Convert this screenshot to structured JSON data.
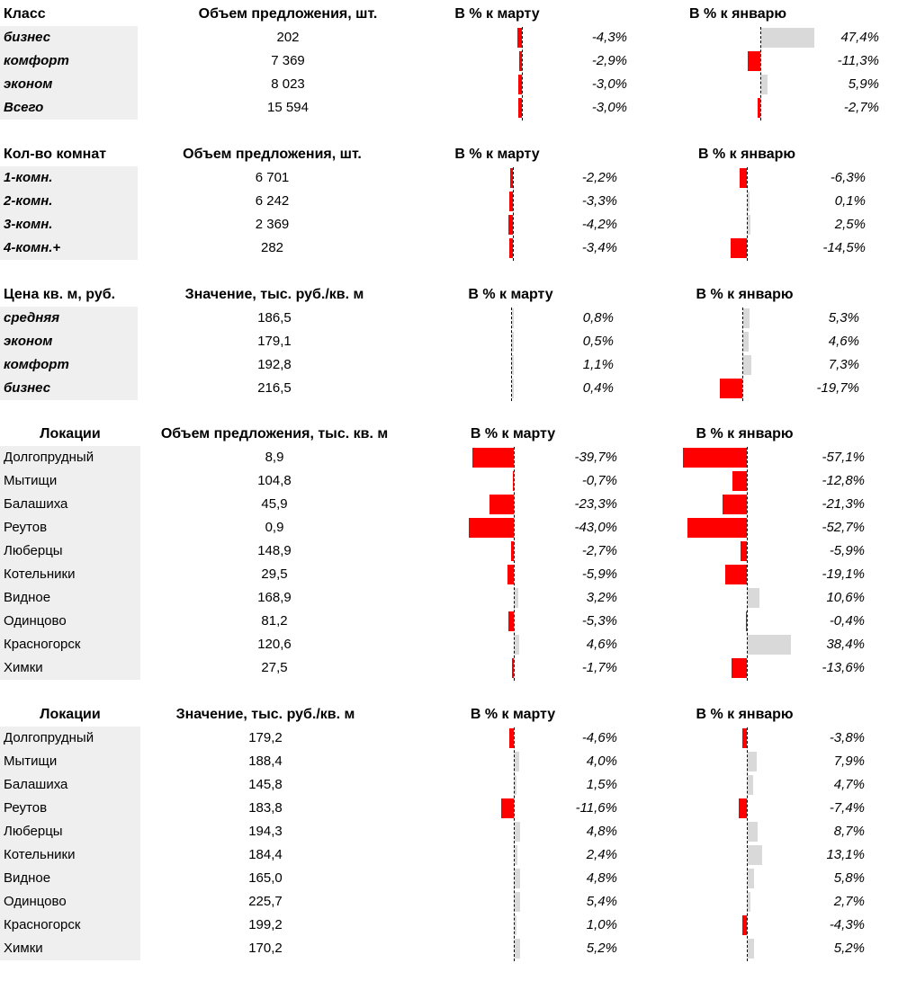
{
  "colors": {
    "negative_bar": "#ff0000",
    "positive_bar": "#d9d9d9",
    "label_bg": "#efefef"
  },
  "chart_data": [
    {
      "type": "table",
      "title": "Класс",
      "headers": {
        "label": "Класс",
        "value": "Объем предложения, шт.",
        "mar": "В % к марту",
        "jan": "В % к январю"
      },
      "scale": {
        "mar": 1.0,
        "jan": 1.0
      },
      "rows": [
        {
          "label": "бизнес",
          "value": "202",
          "mar": -4.3,
          "mar_text": "-4,3%",
          "jan": 47.4,
          "jan_text": "47,4%"
        },
        {
          "label": "комфорт",
          "value": "7 369",
          "mar": -2.9,
          "mar_text": "-2,9%",
          "jan": -11.3,
          "jan_text": "-11,3%"
        },
        {
          "label": "эконом",
          "value": "8 023",
          "mar": -3.0,
          "mar_text": "-3,0%",
          "jan": 5.9,
          "jan_text": "5,9%"
        },
        {
          "label": "Всего",
          "value": "15 594",
          "mar": -3.0,
          "mar_text": "-3,0%",
          "jan": -2.7,
          "jan_text": "-2,7%"
        }
      ]
    },
    {
      "type": "table",
      "title": "Кол-во комнат",
      "headers": {
        "label": "Кол-во комнат",
        "value": "Объем предложения, шт.",
        "mar": "В % к марту",
        "jan": "В % к январю"
      },
      "scale": {
        "mar": 1.0,
        "jan": 1.0
      },
      "rows": [
        {
          "label": "1-комн.",
          "value": "6 701",
          "mar": -2.2,
          "mar_text": "-2,2%",
          "jan": -6.3,
          "jan_text": "-6,3%"
        },
        {
          "label": "2-комн.",
          "value": "6 242",
          "mar": -3.3,
          "mar_text": "-3,3%",
          "jan": 0.1,
          "jan_text": "0,1%"
        },
        {
          "label": "3-комн.",
          "value": "2 369",
          "mar": -4.2,
          "mar_text": "-4,2%",
          "jan": 2.5,
          "jan_text": "2,5%"
        },
        {
          "label": "4-комн.+",
          "value": "282",
          "mar": -3.4,
          "mar_text": "-3,4%",
          "jan": -14.5,
          "jan_text": "-14,5%"
        }
      ]
    },
    {
      "type": "table",
      "title": "Цена кв. м, руб.",
      "headers": {
        "label": "Цена кв. м, руб.",
        "value": "Значение, тыс. руб./кв. м",
        "mar": "В % к марту",
        "jan": "В % к январю"
      },
      "scale": {
        "mar": 1.0,
        "jan": 1.0
      },
      "rows": [
        {
          "label": "средняя",
          "value": "186,5",
          "mar": 0.8,
          "mar_text": "0,8%",
          "jan": 5.3,
          "jan_text": "5,3%"
        },
        {
          "label": "эконом",
          "value": "179,1",
          "mar": 0.5,
          "mar_text": "0,5%",
          "jan": 4.6,
          "jan_text": "4,6%"
        },
        {
          "label": "комфорт",
          "value": "192,8",
          "mar": 1.1,
          "mar_text": "1,1%",
          "jan": 7.3,
          "jan_text": "7,3%"
        },
        {
          "label": "бизнес",
          "value": "216,5",
          "mar": 0.4,
          "mar_text": "0,4%",
          "jan": -19.7,
          "jan_text": "-19,7%"
        }
      ]
    },
    {
      "type": "table",
      "title": "Локации",
      "headers": {
        "label": "Локации",
        "value": "Объем предложения, тыс. кв. м",
        "mar": "В % к марту",
        "jan": "В % к январю"
      },
      "scale": {
        "mar": 1.0,
        "jan": 1.0
      },
      "rows": [
        {
          "label": "Долгопрудный",
          "value": "8,9",
          "mar": -39.7,
          "mar_text": "-39,7%",
          "jan": -57.1,
          "jan_text": "-57,1%"
        },
        {
          "label": "Мытищи",
          "value": "104,8",
          "mar": -0.7,
          "mar_text": "-0,7%",
          "jan": -12.8,
          "jan_text": "-12,8%"
        },
        {
          "label": "Балашиха",
          "value": "45,9",
          "mar": -23.3,
          "mar_text": "-23,3%",
          "jan": -21.3,
          "jan_text": "-21,3%"
        },
        {
          "label": "Реутов",
          "value": "0,9",
          "mar": -43.0,
          "mar_text": "-43,0%",
          "jan": -52.7,
          "jan_text": "-52,7%"
        },
        {
          "label": "Люберцы",
          "value": "148,9",
          "mar": -2.7,
          "mar_text": "-2,7%",
          "jan": -5.9,
          "jan_text": "-5,9%"
        },
        {
          "label": "Котельники",
          "value": "29,5",
          "mar": -5.9,
          "mar_text": "-5,9%",
          "jan": -19.1,
          "jan_text": "-19,1%"
        },
        {
          "label": "Видное",
          "value": "168,9",
          "mar": 3.2,
          "mar_text": "3,2%",
          "jan": 10.6,
          "jan_text": "10,6%"
        },
        {
          "label": "Одинцово",
          "value": "81,2",
          "mar": -5.3,
          "mar_text": "-5,3%",
          "jan": -0.4,
          "jan_text": "-0,4%"
        },
        {
          "label": "Красногорск",
          "value": "120,6",
          "mar": 4.6,
          "mar_text": "4,6%",
          "jan": 38.4,
          "jan_text": "38,4%"
        },
        {
          "label": "Химки",
          "value": "27,5",
          "mar": -1.7,
          "mar_text": "-1,7%",
          "jan": -13.6,
          "jan_text": "-13,6%"
        }
      ]
    },
    {
      "type": "table",
      "title": "Локации",
      "headers": {
        "label": "Локации",
        "value": "Значение, тыс. руб./кв. м",
        "mar": "В % к марту",
        "jan": "В % к январю"
      },
      "scale": {
        "mar": 1.0,
        "jan": 1.0
      },
      "rows": [
        {
          "label": "Долгопрудный",
          "value": "179,2",
          "mar": -4.6,
          "mar_text": "-4,6%",
          "jan": -3.8,
          "jan_text": "-3,8%"
        },
        {
          "label": "Мытищи",
          "value": "188,4",
          "mar": 4.0,
          "mar_text": "4,0%",
          "jan": 7.9,
          "jan_text": "7,9%"
        },
        {
          "label": "Балашиха",
          "value": "145,8",
          "mar": 1.5,
          "mar_text": "1,5%",
          "jan": 4.7,
          "jan_text": "4,7%"
        },
        {
          "label": "Реутов",
          "value": "183,8",
          "mar": -11.6,
          "mar_text": "-11,6%",
          "jan": -7.4,
          "jan_text": "-7,4%"
        },
        {
          "label": "Люберцы",
          "value": "194,3",
          "mar": 4.8,
          "mar_text": "4,8%",
          "jan": 8.7,
          "jan_text": "8,7%"
        },
        {
          "label": "Котельники",
          "value": "184,4",
          "mar": 2.4,
          "mar_text": "2,4%",
          "jan": 13.1,
          "jan_text": "13,1%"
        },
        {
          "label": "Видное",
          "value": "165,0",
          "mar": 4.8,
          "mar_text": "4,8%",
          "jan": 5.8,
          "jan_text": "5,8%"
        },
        {
          "label": "Одинцово",
          "value": "225,7",
          "mar": 5.4,
          "mar_text": "5,4%",
          "jan": 2.7,
          "jan_text": "2,7%"
        },
        {
          "label": "Красногорск",
          "value": "199,2",
          "mar": 1.0,
          "mar_text": "1,0%",
          "jan": -4.3,
          "jan_text": "-4,3%"
        },
        {
          "label": "Химки",
          "value": "170,2",
          "mar": 5.2,
          "mar_text": "5,2%",
          "jan": 5.2,
          "jan_text": "5,2%"
        }
      ]
    }
  ]
}
